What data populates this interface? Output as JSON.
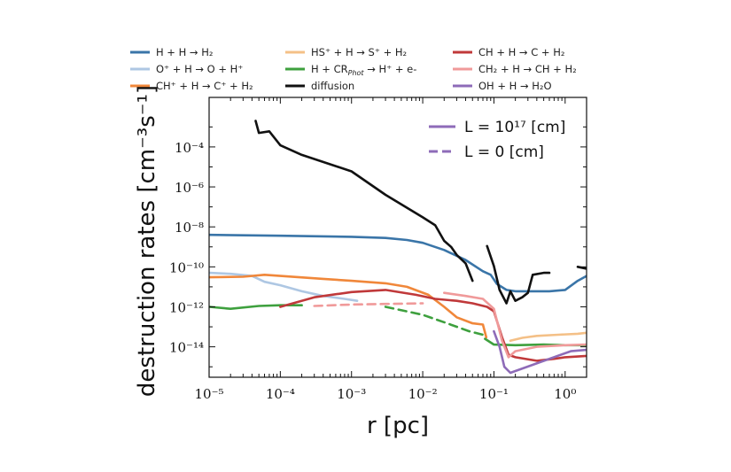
{
  "chart_data": {
    "type": "line",
    "xlabel": "r [pc]",
    "ylabel": "destruction rates [cm⁻³s⁻¹]",
    "xscale": "log",
    "yscale": "log",
    "xlim": [
      1e-05,
      2
    ],
    "ylim": [
      3e-16,
      0.03
    ],
    "x_ticks": [
      1e-05,
      0.0001,
      0.001,
      0.01,
      0.1,
      1
    ],
    "x_tick_labels": [
      "10⁻⁵",
      "10⁻⁴",
      "10⁻³",
      "10⁻²",
      "10⁻¹",
      "10⁰"
    ],
    "y_ticks": [
      1e-14,
      1e-12,
      1e-10,
      1e-08,
      1e-06,
      0.0001
    ],
    "y_tick_labels": [
      "10⁻¹⁴",
      "10⁻¹²",
      "10⁻¹⁰",
      "10⁻⁸",
      "10⁻⁶",
      "10⁻⁴"
    ],
    "grid": false,
    "legend_placement": "top-outside",
    "inner_legend": [
      {
        "label": "L = 10¹⁷ [cm]",
        "style": "solid",
        "color": "#8e6bb8"
      },
      {
        "label": "L = 0 [cm]",
        "style": "dashed",
        "color": "#8e6bb8"
      }
    ],
    "series": [
      {
        "name": "H + H → H₂",
        "color": "#3a75a8",
        "style": "solid",
        "points": [
          [
            1e-05,
            4e-09
          ],
          [
            0.0001,
            3.6e-09
          ],
          [
            0.001,
            3.2e-09
          ],
          [
            0.003,
            2.8e-09
          ],
          [
            0.006,
            2.2e-09
          ],
          [
            0.01,
            1.6e-09
          ],
          [
            0.02,
            7e-10
          ],
          [
            0.04,
            2.2e-10
          ],
          [
            0.07,
            6e-11
          ],
          [
            0.09,
            4e-11
          ],
          [
            0.11,
            1.4e-11
          ],
          [
            0.15,
            7e-12
          ],
          [
            0.2,
            6e-12
          ],
          [
            0.3,
            6e-12
          ],
          [
            0.6,
            6e-12
          ],
          [
            1,
            7e-12
          ],
          [
            1.5,
            2e-11
          ],
          [
            2,
            3.5e-11
          ]
        ]
      },
      {
        "name": "O⁺ + H → O + H⁺",
        "color": "#aec7e3",
        "style": "solid",
        "points": [
          [
            1e-05,
            5e-11
          ],
          [
            2e-05,
            4.5e-11
          ],
          [
            4e-05,
            3.5e-11
          ],
          [
            6e-05,
            1.8e-11
          ],
          [
            0.0001,
            1.2e-11
          ],
          [
            0.0002,
            6e-12
          ],
          [
            0.0004,
            3.5e-12
          ],
          [
            0.0008,
            2.5e-12
          ],
          [
            0.0012,
            2e-12
          ]
        ]
      },
      {
        "name": "CH⁺ + H → C⁺ + H₂",
        "color": "#f0873a",
        "style": "solid",
        "points": [
          [
            1e-05,
            3e-11
          ],
          [
            3e-05,
            3.2e-11
          ],
          [
            6e-05,
            4e-11
          ],
          [
            0.0001,
            3.5e-11
          ],
          [
            0.0004,
            2.5e-11
          ],
          [
            0.001,
            2e-11
          ],
          [
            0.003,
            1.5e-11
          ],
          [
            0.006,
            1e-11
          ],
          [
            0.012,
            4e-12
          ],
          [
            0.02,
            1e-12
          ],
          [
            0.03,
            3e-13
          ],
          [
            0.05,
            1.5e-13
          ],
          [
            0.07,
            1.3e-13
          ],
          [
            0.078,
            3e-14
          ]
        ]
      },
      {
        "name": "HS⁺ + H → S⁺ + H₂",
        "color": "#f4c087",
        "style": "solid",
        "points": [
          [
            0.17,
            2e-14
          ],
          [
            0.25,
            2.8e-14
          ],
          [
            0.4,
            3.5e-14
          ],
          [
            0.8,
            4e-14
          ],
          [
            1.5,
            4.5e-14
          ],
          [
            2,
            5e-14
          ]
        ]
      },
      {
        "name": "H + CR_Phot → H⁺ + e-",
        "color": "#3ea03e",
        "style": "solid",
        "points": [
          [
            1e-05,
            1e-12
          ],
          [
            2e-05,
            8e-13
          ],
          [
            5e-05,
            1.1e-12
          ],
          [
            0.0001,
            1.2e-12
          ],
          [
            0.0002,
            1.2e-12
          ]
        ]
      },
      {
        "name": "H + CR_Phot → H⁺ + e- (L=0)",
        "color": "#3ea03e",
        "style": "dashed",
        "points": [
          [
            0.003,
            1e-12
          ],
          [
            0.01,
            4e-13
          ],
          [
            0.022,
            1.5e-13
          ],
          [
            0.045,
            6e-14
          ],
          [
            0.07,
            4e-14
          ]
        ]
      },
      {
        "name": "H + CR_Phot → H⁺ + e- (tail)",
        "color": "#3ea03e",
        "style": "solid",
        "points": [
          [
            0.075,
            2.5e-14
          ],
          [
            0.1,
            1.3e-14
          ],
          [
            0.2,
            1.2e-14
          ],
          [
            0.5,
            1.3e-14
          ],
          [
            1,
            1.2e-14
          ],
          [
            2,
            1.2e-14
          ]
        ]
      },
      {
        "name": "diffusion",
        "color": "#111111",
        "style": "solid",
        "points": [
          [
            4.5e-05,
            0.002
          ],
          [
            5e-05,
            0.0005
          ],
          [
            7e-05,
            0.0006
          ],
          [
            0.0001,
            0.00012
          ],
          [
            0.0002,
            4e-05
          ],
          [
            0.001,
            6e-06
          ],
          [
            0.003,
            4e-07
          ],
          [
            0.01,
            3e-08
          ],
          [
            0.015,
            1.2e-08
          ],
          [
            0.02,
            2e-09
          ],
          [
            0.025,
            1e-09
          ],
          [
            0.03,
            4e-10
          ],
          [
            0.04,
            1.5e-10
          ],
          [
            0.05,
            2e-11
          ]
        ]
      },
      {
        "name": "diffusion (segment 2)",
        "color": "#111111",
        "style": "solid",
        "points": [
          [
            0.08,
            1.1e-09
          ],
          [
            0.1,
            1.1e-10
          ],
          [
            0.12,
            7e-12
          ],
          [
            0.15,
            1.5e-12
          ],
          [
            0.17,
            6e-12
          ],
          [
            0.2,
            2e-12
          ],
          [
            0.25,
            3e-12
          ],
          [
            0.3,
            5e-12
          ],
          [
            0.35,
            4e-11
          ],
          [
            0.5,
            5e-11
          ],
          [
            0.6,
            5e-11
          ]
        ]
      },
      {
        "name": "diffusion (segment 3)",
        "color": "#111111",
        "style": "solid",
        "points": [
          [
            1.5,
            1e-10
          ],
          [
            2,
            8e-11
          ]
        ]
      },
      {
        "name": "CH + H → C + H₂",
        "color": "#c0393a",
        "style": "solid",
        "points": [
          [
            0.0001,
            1e-12
          ],
          [
            0.0003,
            3e-12
          ],
          [
            0.001,
            5.5e-12
          ],
          [
            0.003,
            7e-12
          ],
          [
            0.008,
            4e-12
          ],
          [
            0.015,
            2.5e-12
          ],
          [
            0.03,
            2e-12
          ],
          [
            0.05,
            1.5e-12
          ],
          [
            0.08,
            1e-12
          ],
          [
            0.1,
            6e-13
          ],
          [
            0.13,
            3e-14
          ],
          [
            0.16,
            4e-15
          ],
          [
            0.2,
            3e-15
          ],
          [
            0.4,
            2e-15
          ],
          [
            0.7,
            2.5e-15
          ],
          [
            1,
            3e-15
          ],
          [
            2,
            3.5e-15
          ]
        ]
      },
      {
        "name": "CH₂ + H → CH + H₂",
        "color": "#f09a9a",
        "style": "solid",
        "points": [
          [
            0.02,
            5e-12
          ],
          [
            0.04,
            3.5e-12
          ],
          [
            0.07,
            2.5e-12
          ],
          [
            0.1,
            8e-13
          ],
          [
            0.13,
            2e-14
          ],
          [
            0.16,
            3e-15
          ],
          [
            0.2,
            6e-15
          ],
          [
            0.4,
            1e-14
          ],
          [
            1,
            1.2e-14
          ],
          [
            2,
            1.3e-14
          ]
        ]
      },
      {
        "name": "CH₂ + H → CH + H₂ (L=0)",
        "color": "#f09a9a",
        "style": "dashed",
        "points": [
          [
            0.0003,
            1.1e-12
          ],
          [
            0.001,
            1.3e-12
          ],
          [
            0.003,
            1.4e-12
          ],
          [
            0.01,
            1.5e-12
          ]
        ]
      },
      {
        "name": "OH + H → H₂O",
        "color": "#8e6bb8",
        "style": "solid",
        "points": [
          [
            0.1,
            6e-14
          ],
          [
            0.12,
            1e-14
          ],
          [
            0.14,
            1e-15
          ],
          [
            0.17,
            5e-16
          ],
          [
            1.2,
            6e-15
          ],
          [
            2,
            7e-15
          ]
        ]
      }
    ],
    "legend": [
      {
        "label": "H + H → H₂",
        "color": "#3a75a8"
      },
      {
        "label": "O⁺ + H → O + H⁺",
        "color": "#aec7e3"
      },
      {
        "label": "CH⁺ + H → C⁺ + H₂",
        "color": "#f0873a"
      },
      {
        "label": "HS⁺ + H → S⁺ + H₂",
        "color": "#f4c087"
      },
      {
        "label": "H + CR",
        "label_sub": "Phot",
        "label_rest": " → H⁺ + e-",
        "color": "#3ea03e"
      },
      {
        "label": "diffusion",
        "color": "#111111"
      },
      {
        "label": "CH + H → C + H₂",
        "color": "#c0393a"
      },
      {
        "label": "CH₂ + H → CH + H₂",
        "color": "#f09a9a"
      },
      {
        "label": "OH + H → H₂O",
        "color": "#8e6bb8"
      }
    ]
  }
}
